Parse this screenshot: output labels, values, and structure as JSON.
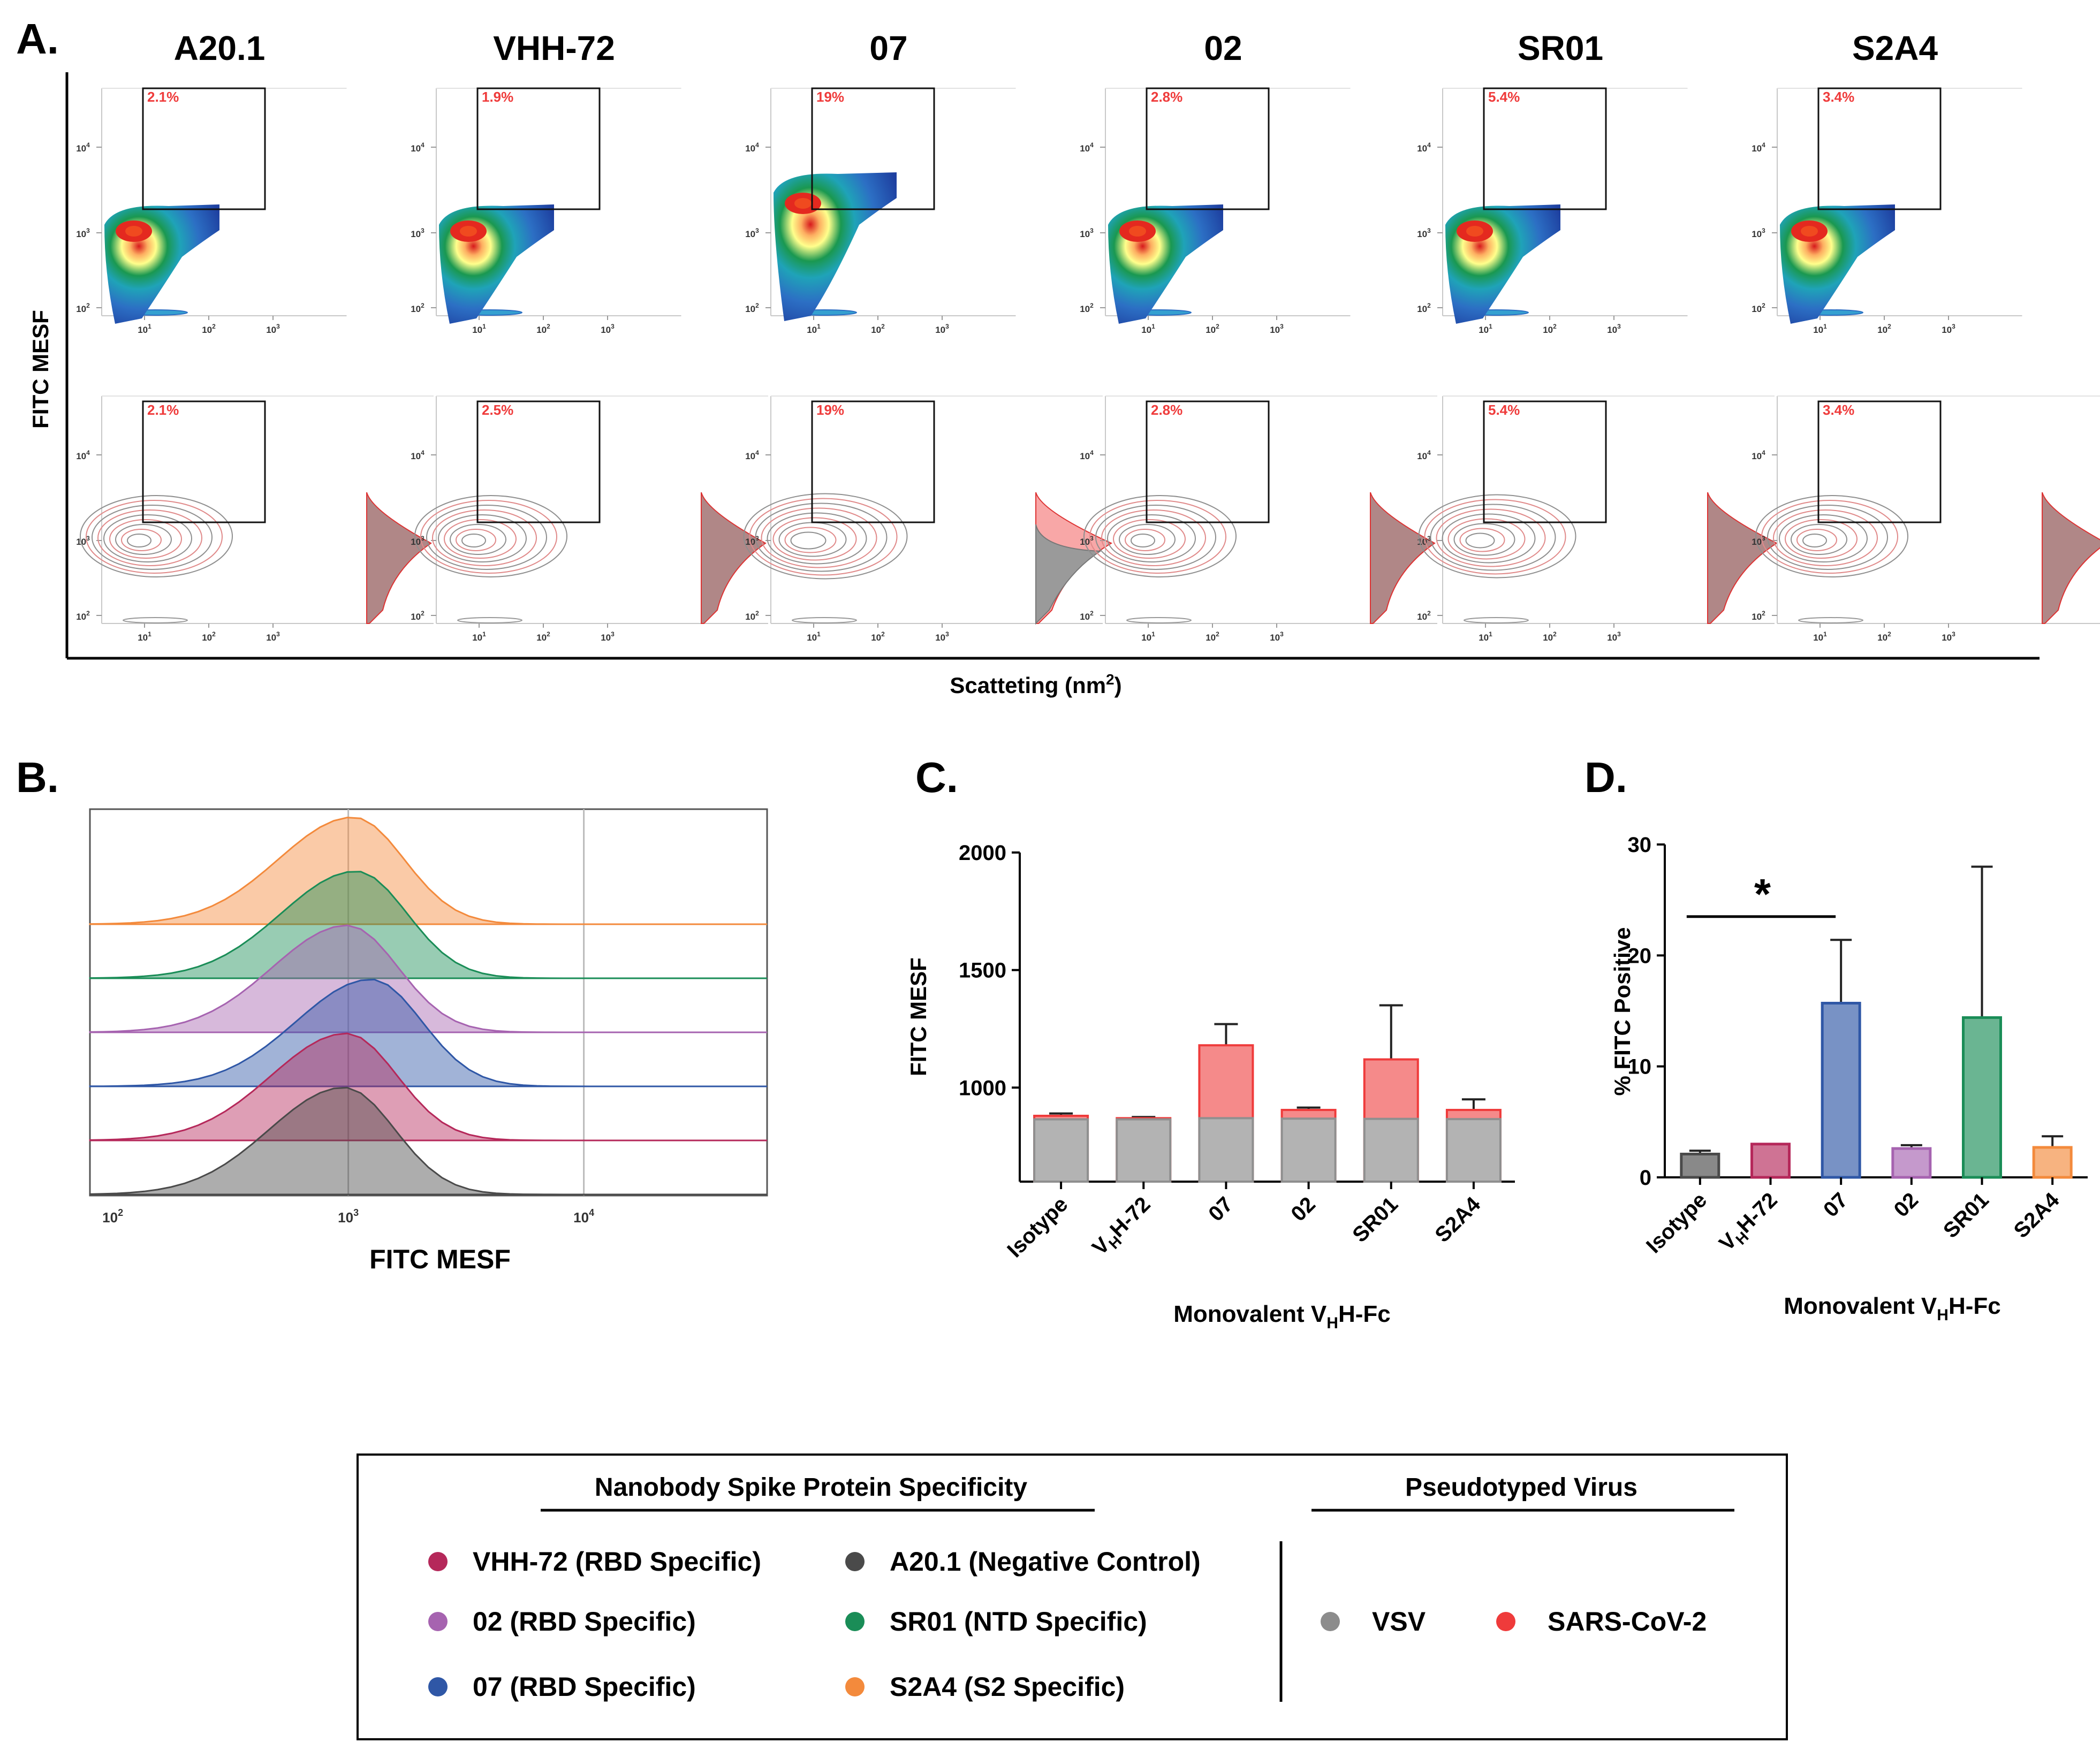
{
  "panels": {
    "A": {
      "letter": "A.",
      "y_label": "FITC MESF",
      "x_label": "Scatteting (nm",
      "x_label_sup": "2",
      "x_label_end": ")",
      "columns": [
        "A20.1",
        "VHH-72",
        "07",
        "02",
        "SR01",
        "S2A4"
      ],
      "x_ticks": [
        "10",
        "10",
        "10"
      ],
      "x_tick_exp": [
        "1",
        "2",
        "3"
      ],
      "y_ticks": [
        "10",
        "10",
        "10"
      ],
      "y_tick_exp": [
        "4",
        "3",
        "2"
      ],
      "row1_gate_pct": [
        "2.1%",
        "1.9%",
        "19%",
        "2.8%",
        "5.4%",
        "3.4%"
      ],
      "row2_gate_pct": [
        "2.1%",
        "2.5%",
        "19%",
        "2.8%",
        "5.4%",
        "3.4%"
      ]
    },
    "B": {
      "letter": "B."
    },
    "C": {
      "letter": "C."
    },
    "D": {
      "letter": "D."
    }
  },
  "colors": {
    "vsv_gray": "#a8a8a8",
    "sars_red": "#ef3b3b",
    "vhh72": "#b5285a",
    "ab02": "#a663b0",
    "ab07": "#2f57a6",
    "a201": "#4a4a4a",
    "sr01": "#1a8d57",
    "s2a4": "#f38a3c"
  },
  "chart_data": [
    {
      "id": "B",
      "type": "area",
      "title": "",
      "xlabel": "FITC MESF",
      "ylabel": "",
      "x_scale": "log",
      "xlim": [
        80,
        60000
      ],
      "x_ticks": [
        "10",
        "10",
        "10"
      ],
      "x_tick_exp": [
        "2",
        "3",
        "4"
      ],
      "series": [
        {
          "name": "S2A4",
          "peak_mesf": 1050,
          "color": "#f38a3c"
        },
        {
          "name": "SR01",
          "peak_mesf": 1080,
          "color": "#1a8d57"
        },
        {
          "name": "02",
          "peak_mesf": 990,
          "color": "#a663b0"
        },
        {
          "name": "07",
          "peak_mesf": 1250,
          "color": "#2f57a6"
        },
        {
          "name": "VHH-72",
          "peak_mesf": 980,
          "color": "#b5285a"
        },
        {
          "name": "A20.1",
          "peak_mesf": 960,
          "color": "#4a4a4a"
        }
      ]
    },
    {
      "id": "C",
      "type": "bar",
      "title": "",
      "xlabel": "Monovalent V",
      "xlabel_sub": "H",
      "xlabel_end": "H-Fc",
      "ylabel": "FITC MESF",
      "ylim": [
        600,
        2000
      ],
      "y_ticks": [
        "1000",
        "1500",
        "2000"
      ],
      "categories": [
        "Isotype",
        "V",
        "07",
        "02",
        "SR01",
        "S2A4"
      ],
      "category_sub": [
        "",
        "H",
        "",
        "",
        "",
        ""
      ],
      "category_end": [
        "",
        "H-72",
        "",
        "",
        "",
        ""
      ],
      "series": [
        {
          "name": "SARS-CoV-2",
          "values": [
            880,
            870,
            1180,
            905,
            1120,
            905
          ],
          "errors": [
            10,
            5,
            90,
            10,
            230,
            45
          ],
          "color": "#ef3b3b"
        },
        {
          "name": "VSV",
          "values": [
            865,
            865,
            870,
            868,
            867,
            866
          ],
          "errors": [
            0,
            0,
            0,
            0,
            0,
            0
          ],
          "color": "#a8a8a8"
        }
      ]
    },
    {
      "id": "D",
      "type": "bar",
      "title": "",
      "xlabel": "Monovalent V",
      "xlabel_sub": "H",
      "xlabel_end": "H-Fc",
      "ylabel": "% FITC Positive",
      "ylim": [
        0,
        30
      ],
      "y_ticks": [
        "0",
        "10",
        "20",
        "30"
      ],
      "categories": [
        "Isotype",
        "V",
        "07",
        "02",
        "SR01",
        "S2A4"
      ],
      "category_sub": [
        "",
        "H",
        "",
        "",
        "",
        ""
      ],
      "category_end": [
        "",
        "H-72",
        "",
        "",
        "",
        ""
      ],
      "values": [
        2.1,
        3.0,
        15.7,
        2.6,
        14.4,
        2.7
      ],
      "errors": [
        0.3,
        0.0,
        5.7,
        0.3,
        13.6,
        1.0
      ],
      "colors": [
        "#4a4a4a",
        "#b5285a",
        "#2f57a6",
        "#a663b0",
        "#1a8d57",
        "#f38a3c"
      ],
      "annotation": "*",
      "annotation_between": [
        "Isotype",
        "07"
      ]
    }
  ],
  "legend": {
    "heading_left": "Nanobody Spike Protein Specificity",
    "heading_right": "Pseudotyped Virus",
    "items": [
      {
        "label": "VHH-72 (RBD Specific)",
        "color": "#b5285a"
      },
      {
        "label": "02 (RBD Specific)",
        "color": "#a663b0"
      },
      {
        "label": "07 (RBD Specific)",
        "color": "#2f57a6"
      },
      {
        "label": "A20.1 (Negative Control)",
        "color": "#4a4a4a"
      },
      {
        "label": "SR01 (NTD Specific)",
        "color": "#1a8d57"
      },
      {
        "label": "S2A4 (S2 Specific)",
        "color": "#f38a3c"
      }
    ],
    "virus_items": [
      {
        "label": "VSV",
        "color": "#8c8c8c"
      },
      {
        "label": "SARS-CoV-2",
        "color": "#ef3b3b"
      }
    ]
  }
}
